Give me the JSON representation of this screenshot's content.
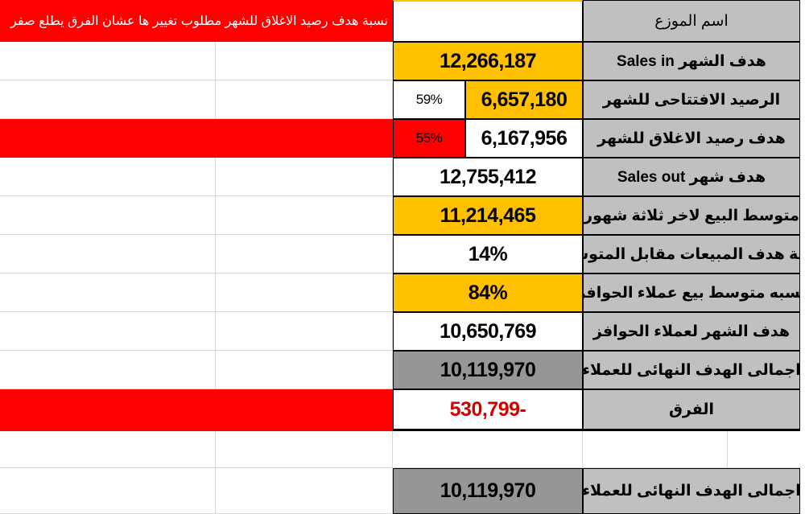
{
  "header": {
    "distributor_label": "اسم الموزع",
    "distributor_value": "",
    "red_note": "نسبة هدف رصيد الاغلاق للشهر    مطلوب تغيير ها عشان الفرق يطلع صفر"
  },
  "rows": {
    "sales_in_label": "هدف الشهر  Sales in",
    "sales_in_value": "12,266,187",
    "opening_label": "الرصيد الافتتاحى للشهر",
    "opening_value": "6,657,180",
    "opening_pct": "59%",
    "closing_label": "هدف رصيد الاغلاق للشهر",
    "closing_value": "6,167,956",
    "closing_pct": "55%",
    "sales_out_label": "هدف شهر  Sales out",
    "sales_out_value": "12,755,412",
    "avg3_label": "متوسط البيع لاخر ثلاثة شهور",
    "avg3_value": "11,214,465",
    "ratio_label": "نسبة هدف المبيعات مقابل المتوسط",
    "ratio_value": "14%",
    "incentive_ratio_label": "نسبه متوسط بيع عملاء الحوافز",
    "incentive_ratio_value": "84%",
    "incentive_target_label": "هدف الشهر  لعملاء الحوافز",
    "incentive_target_value": "10,650,769",
    "total_label": "اجمالى الهدف النهائى للعملاء",
    "total_value": "10,119,970",
    "diff_label": "الفرق",
    "diff_value": "530,799-",
    "total2_label": "اجمالى الهدف النهائى للعملاء",
    "total2_value": "10,119,970"
  },
  "colors": {
    "yellow": "#ffc000",
    "gray_label": "#c0c0c0",
    "gray_dark": "#969696",
    "red": "#ff0000",
    "negative_text": "#d00000"
  }
}
